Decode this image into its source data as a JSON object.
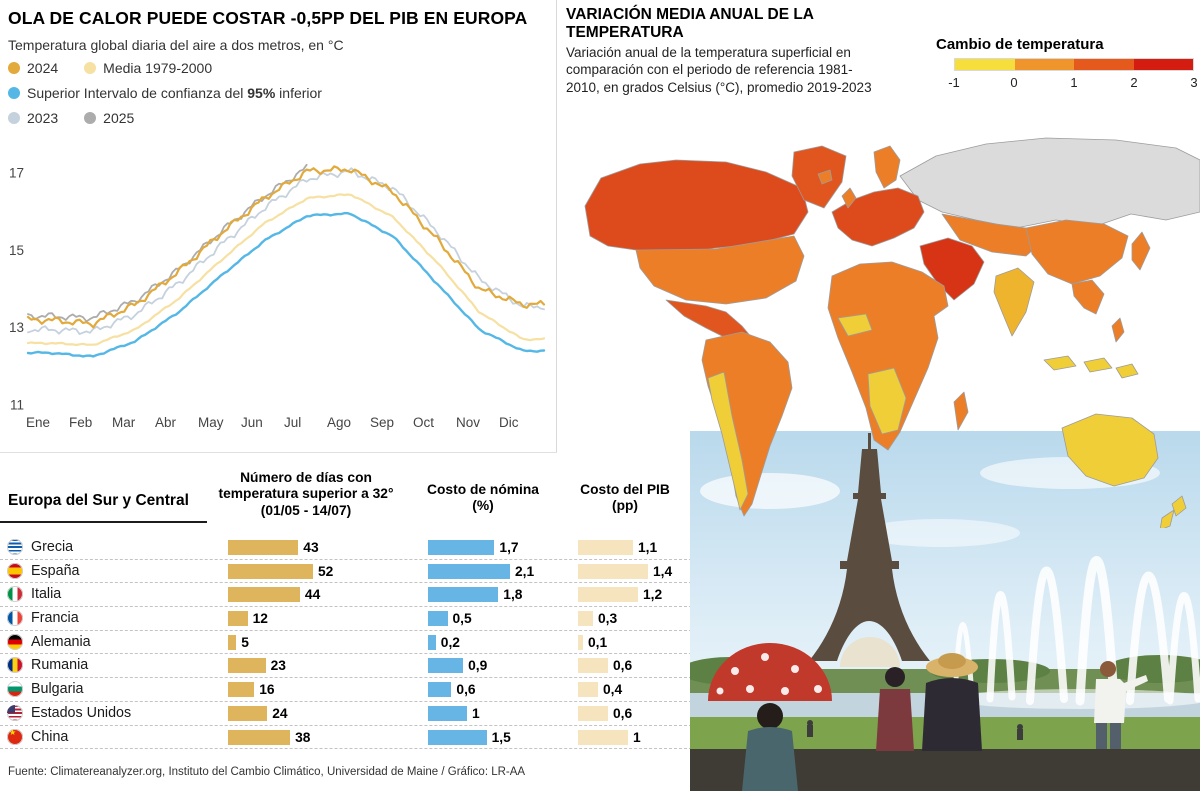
{
  "colors": {
    "bar_days": "#DEB55C",
    "bar_payroll": "#67B5E4",
    "bar_gdp": "#F5E4BD"
  },
  "left_panel": {
    "title": "OLA DE CALOR PUEDE COSTAR -0,5PP DEL PIB EN EUROPA",
    "subtitle": "Temperatura global diaria del aire a dos metros, en °C",
    "legend": {
      "y2024": "2024",
      "y2024_color": "#E2A93B",
      "media": "Media 1979-2000",
      "media_color": "#F6E0A2",
      "conf_pre": "Superior Intervalo de confianza del ",
      "conf_bold": "95%",
      "conf_post": " inferior",
      "conf_color": "#55B7E6",
      "y2023": "2023",
      "y2023_color": "#C5D1DD",
      "y2025": "2025",
      "y2025_color": "#ACACAC"
    }
  },
  "map_panel": {
    "title": "VARIACIÓN MEDIA ANUAL DE LA TEMPERATURA",
    "description": "Variación anual de la temperatura superficial en comparación con el periodo de referencia 1981-2010, en grados Celsius (°C), promedio 2019-2023",
    "legend_title": "Cambio de temperatura",
    "legend_ticks": [
      "-1",
      "0",
      "1",
      "2",
      "3"
    ],
    "legend_colors": [
      "#F6DF3D",
      "#F0942C",
      "#E55A1C",
      "#D41C10"
    ],
    "palette": {
      "y": "#F0CE38",
      "o": "#ED7E28",
      "do": "#E0561E",
      "ro": "#DD4A1C",
      "r": "#D63415",
      "g": "#DBDBDB",
      "io": "#EFB42E"
    }
  },
  "table": {
    "region_header": "Europa del Sur y Central",
    "col_days": "Número de días con temperatura superior a 32° (01/05 - 14/07)",
    "col_payroll": "Costo de nómina (%)",
    "col_gdp": "Costo del PIB (pp)",
    "rows": [
      {
        "country": "Grecia",
        "flag": "gr",
        "days": 43,
        "days_label": "43",
        "payroll": 1.7,
        "payroll_label": "1,7",
        "gdp": 1.1,
        "gdp_label": "1,1"
      },
      {
        "country": "España",
        "flag": "es",
        "days": 52,
        "days_label": "52",
        "payroll": 2.1,
        "payroll_label": "2,1",
        "gdp": 1.4,
        "gdp_label": "1,4"
      },
      {
        "country": "Italia",
        "flag": "it",
        "days": 44,
        "days_label": "44",
        "payroll": 1.8,
        "payroll_label": "1,8",
        "gdp": 1.2,
        "gdp_label": "1,2"
      },
      {
        "country": "Francia",
        "flag": "fr",
        "days": 12,
        "days_label": "12",
        "payroll": 0.5,
        "payroll_label": "0,5",
        "gdp": 0.3,
        "gdp_label": "0,3"
      },
      {
        "country": "Alemania",
        "flag": "de",
        "days": 5,
        "days_label": "5",
        "payroll": 0.2,
        "payroll_label": "0,2",
        "gdp": 0.1,
        "gdp_label": "0,1"
      },
      {
        "country": "Rumania",
        "flag": "ro",
        "days": 23,
        "days_label": "23",
        "payroll": 0.9,
        "payroll_label": "0,9",
        "gdp": 0.6,
        "gdp_label": "0,6"
      },
      {
        "country": "Bulgaria",
        "flag": "bg",
        "days": 16,
        "days_label": "16",
        "payroll": 0.6,
        "payroll_label": "0,6",
        "gdp": 0.4,
        "gdp_label": "0,4"
      },
      {
        "country": "Estados Unidos",
        "flag": "us",
        "days": 24,
        "days_label": "24",
        "payroll": 1.0,
        "payroll_label": "1",
        "gdp": 0.6,
        "gdp_label": "0,6"
      },
      {
        "country": "China",
        "flag": "cn",
        "days": 38,
        "days_label": "38",
        "payroll": 1.5,
        "payroll_label": "1,5",
        "gdp": 1.0,
        "gdp_label": "1"
      }
    ]
  },
  "footer": "Fuente: Climatereanalyzer.org, Instituto del Cambio Climático, Universidad de Maine / Gráfico: LR-AA",
  "chart_data": [
    {
      "type": "line",
      "title": "Temperatura global diaria del aire a dos metros, en °C",
      "x": [
        "Ene",
        "Feb",
        "Mar",
        "Abr",
        "May",
        "Jun",
        "Jul",
        "Ago",
        "Sep",
        "Oct",
        "Nov",
        "Dic"
      ],
      "ylim": [
        11,
        17.6
      ],
      "yticks": [
        11,
        13,
        15,
        17
      ],
      "grid": false,
      "legend_position": "top-left",
      "series": [
        {
          "name": "Media 1979-2000",
          "color": "#F6E0A2",
          "width": 2.2,
          "values": [
            12.6,
            12.55,
            12.95,
            13.75,
            14.75,
            15.7,
            16.35,
            16.45,
            15.85,
            14.7,
            13.4,
            12.7
          ]
        },
        {
          "name": "Intervalo de confianza del 95% (superior/inferior)",
          "color": "#55B7E6",
          "width": 2.4,
          "values": [
            12.35,
            12.25,
            12.65,
            13.4,
            14.35,
            15.25,
            15.9,
            15.95,
            15.35,
            14.15,
            12.95,
            12.4
          ]
        },
        {
          "name": "2023",
          "color": "#C5D1DD",
          "width": 1.8,
          "values": [
            12.95,
            12.9,
            13.35,
            14.15,
            15.15,
            16.1,
            16.85,
            17.05,
            16.6,
            15.5,
            14.25,
            13.55
          ]
        },
        {
          "name": "2025",
          "color": "#ACACAC",
          "width": 1.8,
          "values": [
            13.3,
            13.25,
            13.7,
            14.5,
            15.5,
            16.4,
            17.15
          ]
        },
        {
          "name": "2024",
          "color": "#E2A93B",
          "width": 2.2,
          "values": [
            13.2,
            13.1,
            13.6,
            14.45,
            15.45,
            16.35,
            17.05,
            17.1,
            16.5,
            15.3,
            14.0,
            13.6
          ]
        }
      ]
    },
    {
      "type": "choropleth",
      "title": "VARIACIÓN MEDIA ANUAL DE LA TEMPERATURA",
      "scale_label": "Cambio de temperatura",
      "scale_ticks": [
        -1,
        0,
        1,
        2,
        3
      ],
      "regions": [
        {
          "region": "Canadá",
          "category": "rojo-naranja (≈2)"
        },
        {
          "region": "Estados Unidos",
          "category": "naranja (≈1-2)"
        },
        {
          "region": "Groenlandia",
          "category": "naranja oscuro (≈2)"
        },
        {
          "region": "Sudamérica",
          "category": "naranja / amarillo (≈0-1)"
        },
        {
          "region": "Europa",
          "category": "rojo-naranja (≈2)"
        },
        {
          "region": "Rusia",
          "category": "gris (sin datos)"
        },
        {
          "region": "Oriente Medio",
          "category": "rojo (≈2-3)"
        },
        {
          "region": "África",
          "category": "naranja con zonas amarillas (≈0-2)"
        },
        {
          "region": "India",
          "category": "amarillo-naranja (≈0-1)"
        },
        {
          "region": "China",
          "category": "naranja (≈1-2)"
        },
        {
          "region": "Australia",
          "category": "amarillo (≈0-1)"
        },
        {
          "region": "Nueva Zelanda",
          "category": "amarillo (≈0-1)"
        }
      ]
    },
    {
      "type": "bar",
      "title": "Europa del Sur y Central",
      "categories": [
        "Grecia",
        "España",
        "Italia",
        "Francia",
        "Alemania",
        "Rumania",
        "Bulgaria",
        "Estados Unidos",
        "China"
      ],
      "series": [
        {
          "name": "Número de días con temperatura superior a 32° (01/05 - 14/07)",
          "values": [
            43,
            52,
            44,
            12,
            5,
            23,
            16,
            24,
            38
          ]
        },
        {
          "name": "Costo de nómina (%)",
          "values": [
            1.7,
            2.1,
            1.8,
            0.5,
            0.2,
            0.9,
            0.6,
            1.0,
            1.5
          ]
        },
        {
          "name": "Costo del PIB (pp)",
          "values": [
            1.1,
            1.4,
            1.2,
            0.3,
            0.1,
            0.6,
            0.4,
            0.6,
            1.0
          ]
        }
      ]
    }
  ]
}
